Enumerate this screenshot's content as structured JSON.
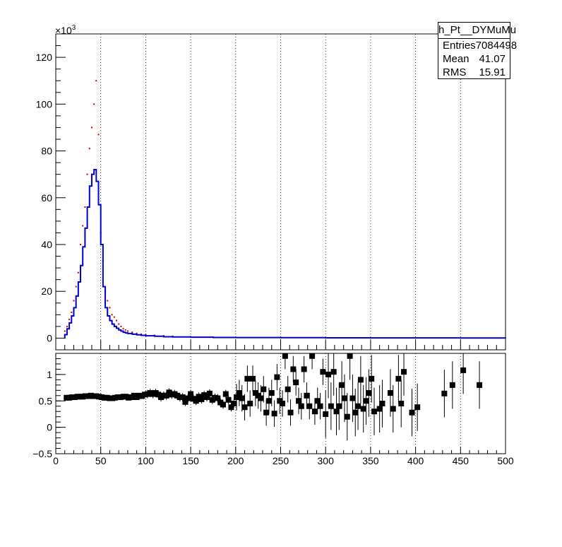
{
  "stats_box": {
    "title": "h_Pt__DYMuMu",
    "rows": [
      {
        "label": "Entries",
        "value": "7084498"
      },
      {
        "label": "Mean",
        "value": "41.07"
      },
      {
        "label": "RMS",
        "value": "15.91"
      }
    ]
  },
  "colors": {
    "histogram_line": "#0000cc",
    "markers_red": "#cc0000",
    "ratio_markers": "#000000",
    "grid": "#000000"
  },
  "chart_data": [
    {
      "type": "line",
      "panel": "upper",
      "x_ticks": [
        "0",
        "50",
        "100",
        "150",
        "200",
        "250",
        "300",
        "350",
        "400",
        "450",
        "500"
      ],
      "xlim": [
        0,
        500
      ],
      "ylim": [
        -5000,
        130000
      ],
      "y_ticks": [
        "0",
        "20",
        "40",
        "60",
        "80",
        "100",
        "120"
      ],
      "y_scale_label": "×10",
      "y_scale_exponent": "3",
      "grid": "vertical dotted",
      "series": [
        {
          "style": "step",
          "x": [
            10,
            12.5,
            15,
            17.5,
            20,
            22.5,
            25,
            27.5,
            30,
            32.5,
            35,
            37.5,
            40,
            42.5,
            45,
            47.5,
            50,
            52.5,
            55,
            57.5,
            60,
            62.5,
            65,
            67.5,
            70,
            72.5,
            75,
            77.5,
            80,
            85,
            90,
            95,
            100,
            110,
            120,
            130,
            150,
            175,
            200,
            250,
            300,
            350,
            400,
            450,
            500
          ],
          "y": [
            1500,
            4000,
            6500,
            9500,
            13000,
            18000,
            24000,
            31000,
            39000,
            47000,
            56000,
            65000,
            70000,
            72000,
            67000,
            57000,
            40000,
            22000,
            13000,
            9500,
            7500,
            6000,
            5000,
            4200,
            3500,
            3000,
            2500,
            2200,
            2000,
            1700,
            1400,
            1200,
            1000,
            800,
            600,
            500,
            400,
            300,
            250,
            200,
            150,
            100,
            80,
            60,
            50
          ]
        },
        {
          "style": "marker",
          "x": [
            10,
            12.5,
            15,
            17.5,
            20,
            22.5,
            25,
            27.5,
            30,
            32.5,
            35,
            37.5,
            40,
            42.5,
            45,
            47.5,
            50,
            52.5,
            55,
            57.5,
            60,
            62.5,
            65,
            67.5,
            70,
            72.5,
            75,
            77.5,
            80,
            85,
            90,
            95,
            100,
            110,
            120,
            130,
            150,
            175,
            200,
            250
          ],
          "y": [
            3000,
            5000,
            8000,
            11000,
            16000,
            22000,
            28000,
            40000,
            48000,
            56000,
            70000,
            81000,
            90000,
            100000,
            110000,
            87000,
            45000,
            33000,
            20000,
            16000,
            13000,
            10000,
            9000,
            7500,
            6000,
            5000,
            4000,
            3500,
            3000,
            2500,
            2000,
            1700,
            1500,
            1200,
            1000,
            800,
            600,
            400,
            300,
            200
          ]
        }
      ]
    },
    {
      "type": "scatter",
      "panel": "lower",
      "x_ticks": [
        "0",
        "50",
        "100",
        "150",
        "200",
        "250",
        "300",
        "350",
        "400",
        "450",
        "500"
      ],
      "xlim": [
        0,
        500
      ],
      "ylim": [
        -0.5,
        1.4
      ],
      "y_ticks": [
        "−0.5",
        "0",
        "0.5",
        "1"
      ],
      "grid": "vertical dotted",
      "points": [
        {
          "x": 12,
          "y": 0.56
        },
        {
          "x": 15,
          "y": 0.56
        },
        {
          "x": 18,
          "y": 0.57
        },
        {
          "x": 21,
          "y": 0.57
        },
        {
          "x": 24,
          "y": 0.58
        },
        {
          "x": 27,
          "y": 0.58
        },
        {
          "x": 30,
          "y": 0.58
        },
        {
          "x": 33,
          "y": 0.59
        },
        {
          "x": 36,
          "y": 0.59
        },
        {
          "x": 39,
          "y": 0.6
        },
        {
          "x": 42,
          "y": 0.59
        },
        {
          "x": 45,
          "y": 0.59
        },
        {
          "x": 48,
          "y": 0.58
        },
        {
          "x": 51,
          "y": 0.57
        },
        {
          "x": 54,
          "y": 0.56
        },
        {
          "x": 57,
          "y": 0.56
        },
        {
          "x": 60,
          "y": 0.55
        },
        {
          "x": 63,
          "y": 0.55
        },
        {
          "x": 66,
          "y": 0.56
        },
        {
          "x": 69,
          "y": 0.57
        },
        {
          "x": 72,
          "y": 0.57
        },
        {
          "x": 75,
          "y": 0.58
        },
        {
          "x": 78,
          "y": 0.58
        },
        {
          "x": 81,
          "y": 0.56
        },
        {
          "x": 84,
          "y": 0.57
        },
        {
          "x": 87,
          "y": 0.6
        },
        {
          "x": 90,
          "y": 0.57
        },
        {
          "x": 93,
          "y": 0.6
        },
        {
          "x": 96,
          "y": 0.59
        },
        {
          "x": 99,
          "y": 0.62
        },
        {
          "x": 102,
          "y": 0.63
        },
        {
          "x": 105,
          "y": 0.65
        },
        {
          "x": 108,
          "y": 0.63
        },
        {
          "x": 111,
          "y": 0.65
        },
        {
          "x": 114,
          "y": 0.62
        },
        {
          "x": 117,
          "y": 0.57
        },
        {
          "x": 120,
          "y": 0.6
        },
        {
          "x": 123,
          "y": 0.6
        },
        {
          "x": 126,
          "y": 0.66
        },
        {
          "x": 129,
          "y": 0.62
        },
        {
          "x": 132,
          "y": 0.63
        },
        {
          "x": 135,
          "y": 0.6
        },
        {
          "x": 138,
          "y": 0.57
        },
        {
          "x": 141,
          "y": 0.57
        },
        {
          "x": 144,
          "y": 0.48
        },
        {
          "x": 147,
          "y": 0.55
        },
        {
          "x": 150,
          "y": 0.63
        },
        {
          "x": 153,
          "y": 0.54
        },
        {
          "x": 156,
          "y": 0.5
        },
        {
          "x": 159,
          "y": 0.58
        },
        {
          "x": 162,
          "y": 0.53
        },
        {
          "x": 165,
          "y": 0.61
        },
        {
          "x": 168,
          "y": 0.57
        },
        {
          "x": 171,
          "y": 0.64
        },
        {
          "x": 174,
          "y": 0.52
        },
        {
          "x": 177,
          "y": 0.56
        },
        {
          "x": 180,
          "y": 0.55
        },
        {
          "x": 183,
          "y": 0.47
        },
        {
          "x": 186,
          "y": 0.43
        },
        {
          "x": 189,
          "y": 0.63
        },
        {
          "x": 192,
          "y": 0.52
        },
        {
          "x": 195,
          "y": 0.38
        },
        {
          "x": 198,
          "y": 0.45
        },
        {
          "x": 201,
          "y": 0.57
        },
        {
          "x": 204,
          "y": 0.65
        },
        {
          "x": 207,
          "y": 0.55
        },
        {
          "x": 210,
          "y": 0.38
        },
        {
          "x": 213,
          "y": 0.92
        },
        {
          "x": 216,
          "y": 0.45
        },
        {
          "x": 219,
          "y": 0.92
        },
        {
          "x": 222,
          "y": 0.65
        },
        {
          "x": 225,
          "y": 0.6
        },
        {
          "x": 228,
          "y": 0.55
        },
        {
          "x": 231,
          "y": 0.72
        },
        {
          "x": 234,
          "y": 0.28
        },
        {
          "x": 237,
          "y": 0.5
        },
        {
          "x": 240,
          "y": 0.65
        },
        {
          "x": 243,
          "y": 0.26
        },
        {
          "x": 246,
          "y": 0.95
        },
        {
          "x": 249,
          "y": 0.5
        },
        {
          "x": 252,
          "y": 0.45
        },
        {
          "x": 255,
          "y": 1.35
        },
        {
          "x": 258,
          "y": 0.72
        },
        {
          "x": 261,
          "y": 0.28
        },
        {
          "x": 264,
          "y": 1.1
        },
        {
          "x": 267,
          "y": 0.85
        },
        {
          "x": 270,
          "y": 0.5
        },
        {
          "x": 273,
          "y": 0.4
        },
        {
          "x": 276,
          "y": 1.1
        },
        {
          "x": 279,
          "y": 0.6
        },
        {
          "x": 282,
          "y": 0.4
        },
        {
          "x": 285,
          "y": 1.35
        },
        {
          "x": 288,
          "y": 0.3
        },
        {
          "x": 291,
          "y": 0.5
        },
        {
          "x": 294,
          "y": 0.4
        },
        {
          "x": 297,
          "y": 1.05
        },
        {
          "x": 300,
          "y": 0.25
        },
        {
          "x": 303,
          "y": 1.0
        },
        {
          "x": 306,
          "y": 0.4
        },
        {
          "x": 309,
          "y": 1.05
        },
        {
          "x": 312,
          "y": 0.3
        },
        {
          "x": 315,
          "y": 0.4
        },
        {
          "x": 318,
          "y": 0.8
        },
        {
          "x": 321,
          "y": 0.55
        },
        {
          "x": 324,
          "y": 0.2
        },
        {
          "x": 327,
          "y": 1.35
        },
        {
          "x": 330,
          "y": 0.55
        },
        {
          "x": 333,
          "y": 0.28
        },
        {
          "x": 336,
          "y": 0.4
        },
        {
          "x": 339,
          "y": 0.9
        },
        {
          "x": 342,
          "y": 0.35
        },
        {
          "x": 345,
          "y": 0.5
        },
        {
          "x": 348,
          "y": 0.65
        },
        {
          "x": 351,
          "y": 0.92
        },
        {
          "x": 354,
          "y": 0.3
        },
        {
          "x": 360,
          "y": 0.35
        },
        {
          "x": 363,
          "y": 0.45
        },
        {
          "x": 372,
          "y": 0.65
        },
        {
          "x": 375,
          "y": 0.35
        },
        {
          "x": 381,
          "y": 0.92
        },
        {
          "x": 384,
          "y": 0.45
        },
        {
          "x": 387,
          "y": 1.05
        },
        {
          "x": 396,
          "y": 0.28
        },
        {
          "x": 402,
          "y": 0.38
        },
        {
          "x": 432,
          "y": 0.64
        },
        {
          "x": 441,
          "y": 0.8
        },
        {
          "x": 453,
          "y": 1.08
        },
        {
          "x": 471,
          "y": 0.8
        }
      ]
    }
  ]
}
